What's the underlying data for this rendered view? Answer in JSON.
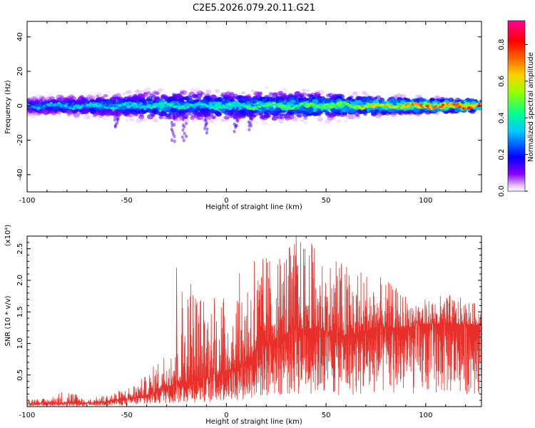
{
  "title": "C2E5.2026.079.20.11.G21",
  "chart_data": [
    {
      "type": "heatmap",
      "title": "C2E5.2026.079.20.11.G21",
      "xlabel": "Height of straight line (km)",
      "ylabel": "Frequency (Hz)",
      "xlim": [
        -100,
        128
      ],
      "ylim": [
        -50,
        49
      ],
      "xticks": [
        -100,
        -50,
        0,
        50,
        100
      ],
      "yticks": [
        -40,
        -20,
        0,
        20,
        40
      ],
      "colorbar": {
        "label": "Normalized spectral amplitude",
        "ticks": [
          "0.0",
          "0.2",
          "0.4",
          "0.6",
          "0.8"
        ],
        "range": [
          0,
          0.93
        ],
        "colormap": "rainbow (white-purple-blue-cyan-green-yellow-orange-red-magenta)"
      },
      "ridge": {
        "description": "energy concentrated near 0 Hz across all heights",
        "center_frequency_hz": 0,
        "band_halfwidth_hz": [
          [
            -100,
            6
          ],
          [
            -60,
            8
          ],
          [
            -40,
            10
          ],
          [
            -20,
            10
          ],
          [
            0,
            9
          ],
          [
            20,
            10
          ],
          [
            50,
            9
          ],
          [
            80,
            6
          ],
          [
            128,
            4
          ]
        ],
        "peak_amplitude": [
          [
            -100,
            0.35
          ],
          [
            -50,
            0.45
          ],
          [
            0,
            0.5
          ],
          [
            50,
            0.6
          ],
          [
            80,
            0.75
          ],
          [
            100,
            0.85
          ],
          [
            128,
            0.9
          ]
        ]
      },
      "grid": false,
      "legend": "colorbar-right"
    },
    {
      "type": "line",
      "xlabel": "Height of straight line (km)",
      "ylabel": "SNR (10 * v/v)",
      "y_multiplier": "(x10⁴)",
      "xlim": [
        -100,
        128
      ],
      "ylim": [
        0,
        2.7
      ],
      "xticks": [
        -100,
        -50,
        0,
        50,
        100
      ],
      "yticks": [
        "0.5",
        "1.0",
        "1.5",
        "2.0",
        "2.5"
      ],
      "series": [
        {
          "color": "#e8302a",
          "envelope": {
            "x": [
              -100,
              -90,
              -80,
              -70,
              -60,
              -50,
              -40,
              -30,
              -20,
              -10,
              0,
              10,
              20,
              30,
              40,
              50,
              60,
              70,
              80,
              90,
              100,
              110,
              120,
              128
            ],
            "mean": [
              0.05,
              0.06,
              0.05,
              0.05,
              0.08,
              0.12,
              0.18,
              0.32,
              0.38,
              0.45,
              0.55,
              0.7,
              1.0,
              1.15,
              1.25,
              1.2,
              1.1,
              1.2,
              1.25,
              1.25,
              1.3,
              1.3,
              1.3,
              1.3
            ],
            "max": [
              0.15,
              0.12,
              0.3,
              0.12,
              0.2,
              0.3,
              0.5,
              0.95,
              2.3,
              1.7,
              1.8,
              2.3,
              2.4,
              2.6,
              2.7,
              2.4,
              2.3,
              2.2,
              2.0,
              1.8,
              1.7,
              1.8,
              1.7,
              1.6
            ]
          },
          "notable_peaks": [
            {
              "x": -25,
              "y": 2.2
            },
            {
              "x": -6,
              "y": 1.72
            },
            {
              "x": 14,
              "y": 2.3
            },
            {
              "x": 20,
              "y": 2.35
            },
            {
              "x": 35,
              "y": 2.7
            },
            {
              "x": 43,
              "y": 2.55
            },
            {
              "x": 55,
              "y": 2.3
            }
          ]
        }
      ],
      "grid": false
    }
  ]
}
